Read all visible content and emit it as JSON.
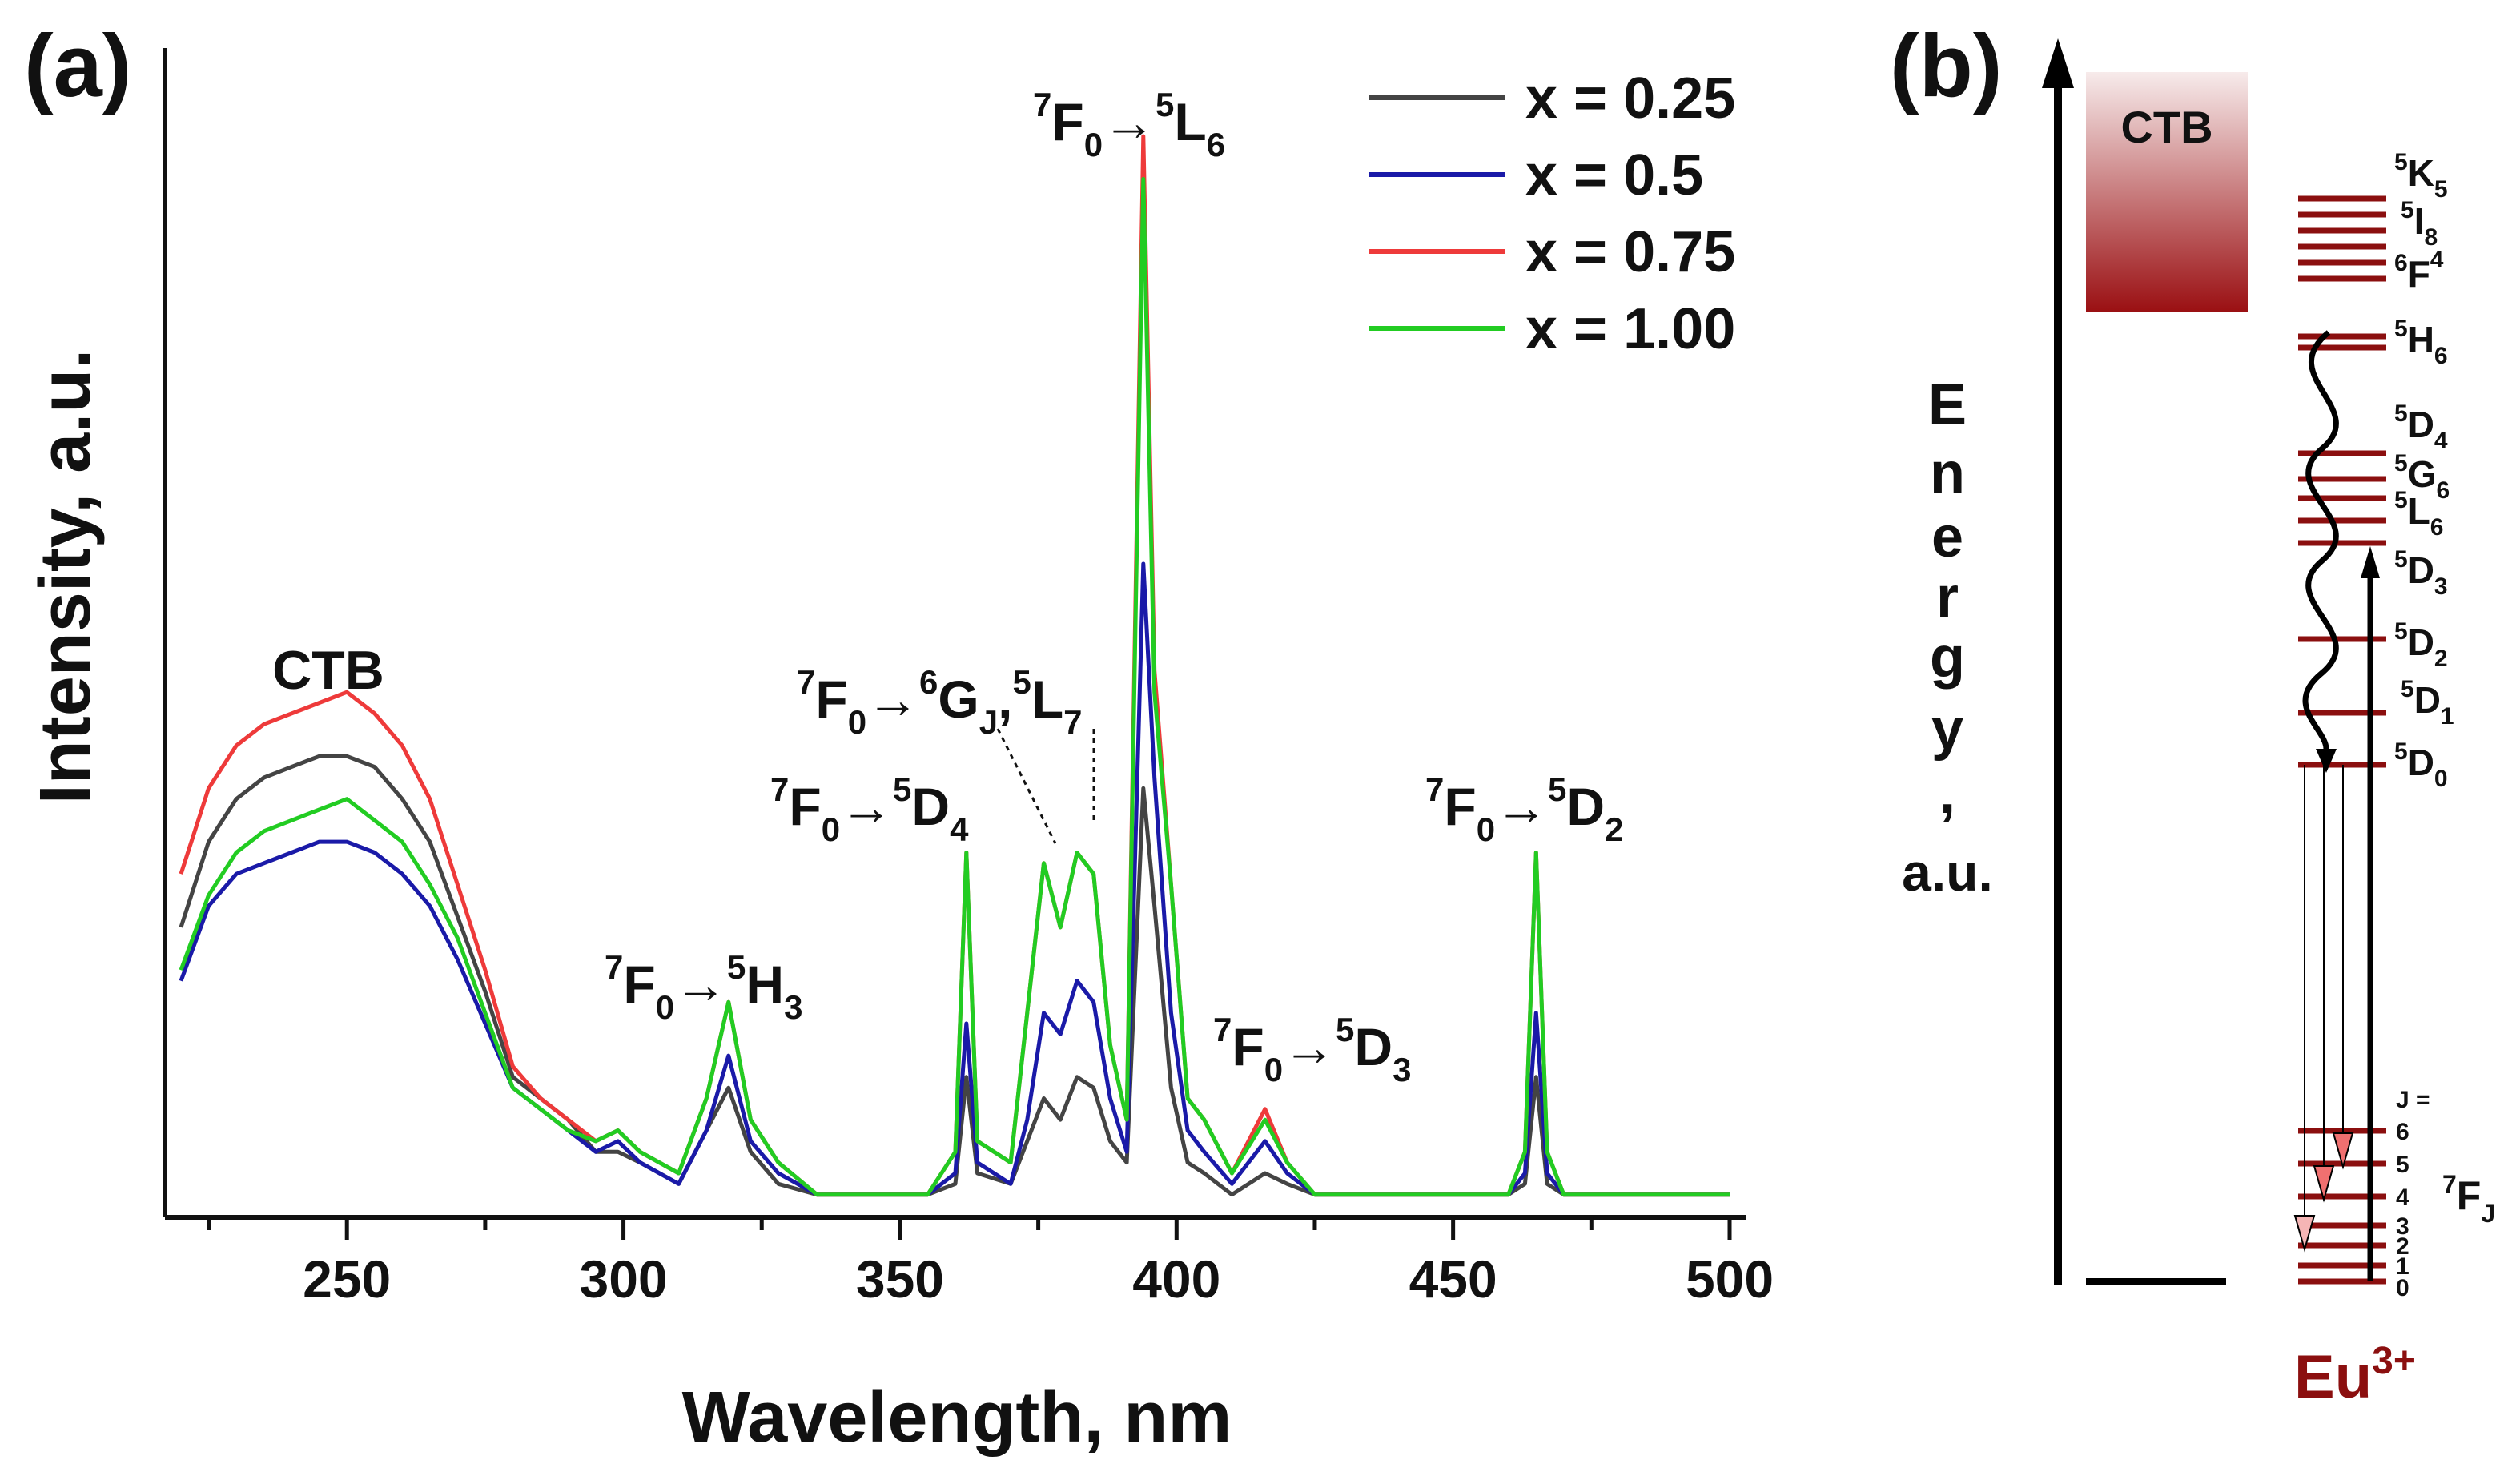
{
  "panel_a_label": "(a)",
  "panel_b_label": "(b)",
  "chart_data": [
    {
      "type": "line",
      "panel": "(a)",
      "xlabel": "Wavelength, nm",
      "ylabel": "Intensity, a.u.",
      "xlim": [
        220,
        500
      ],
      "ylim": [
        0,
        100
      ],
      "xticks": [
        250,
        300,
        350,
        400,
        450,
        500
      ],
      "xtick_labels": [
        "250",
        "300",
        "350",
        "400",
        "450",
        "500"
      ],
      "legend_position": "top-right",
      "series": [
        {
          "name": "x = 0.25",
          "color": "#444444",
          "x": [
            220,
            225,
            230,
            235,
            240,
            245,
            250,
            255,
            260,
            265,
            270,
            275,
            280,
            285,
            290,
            295,
            299,
            303,
            310,
            315,
            319,
            323,
            328,
            335,
            345,
            355,
            360,
            362,
            364,
            370,
            373,
            376,
            379,
            382,
            385,
            388,
            391,
            394,
            396,
            399,
            402,
            405,
            410,
            416,
            420,
            425,
            440,
            445,
            450,
            460,
            463,
            465,
            467,
            470,
            480,
            488,
            495,
            500
          ],
          "values": [
            26,
            34,
            38,
            40,
            41,
            42,
            42,
            41,
            38,
            34,
            27,
            20,
            12,
            10,
            8,
            5,
            5,
            4,
            2,
            7,
            11,
            5,
            2,
            1,
            1,
            1,
            2,
            12,
            3,
            2,
            6,
            10,
            8,
            12,
            11,
            6,
            4,
            39,
            28,
            11,
            4,
            3,
            1,
            3,
            2,
            1,
            1,
            1,
            1,
            1,
            2,
            12,
            2,
            1,
            1,
            1,
            1,
            1
          ]
        },
        {
          "name": "x = 0.5",
          "color": "#1a1aa8",
          "x": [
            220,
            225,
            230,
            235,
            240,
            245,
            250,
            255,
            260,
            265,
            270,
            275,
            280,
            285,
            290,
            295,
            299,
            303,
            310,
            315,
            319,
            323,
            328,
            335,
            345,
            355,
            360,
            362,
            364,
            370,
            373,
            376,
            379,
            382,
            385,
            388,
            391,
            394,
            396,
            399,
            402,
            405,
            410,
            416,
            420,
            425,
            440,
            445,
            450,
            460,
            463,
            465,
            467,
            470,
            480,
            488,
            495,
            500
          ],
          "values": [
            21,
            28,
            31,
            32,
            33,
            34,
            34,
            33,
            31,
            28,
            23,
            17,
            11,
            9,
            7,
            5,
            6,
            4,
            2,
            7,
            14,
            6,
            3,
            1,
            1,
            1,
            3,
            17,
            4,
            2,
            8,
            18,
            16,
            21,
            19,
            10,
            5,
            60,
            40,
            18,
            7,
            5,
            2,
            6,
            3,
            1,
            1,
            1,
            1,
            1,
            3,
            18,
            3,
            1,
            1,
            1,
            1,
            1
          ]
        },
        {
          "name": "x = 0.75",
          "color": "#ee3a3a",
          "x": [
            220,
            225,
            230,
            235,
            240,
            245,
            250,
            255,
            260,
            265,
            270,
            275,
            280,
            285,
            290,
            295,
            299,
            303,
            310,
            315,
            319,
            323,
            328,
            335,
            345,
            355,
            360,
            362,
            364,
            370,
            373,
            376,
            379,
            382,
            385,
            388,
            391,
            394,
            396,
            399,
            402,
            405,
            410,
            416,
            420,
            425,
            440,
            445,
            450,
            460,
            463,
            465,
            467,
            470,
            480,
            488,
            495,
            500
          ],
          "values": [
            31,
            39,
            43,
            45,
            46,
            47,
            48,
            46,
            43,
            38,
            30,
            22,
            13,
            10,
            8,
            6,
            7,
            5,
            3,
            10,
            19,
            8,
            4,
            1,
            1,
            1,
            5,
            33,
            6,
            4,
            18,
            32,
            26,
            33,
            31,
            15,
            8,
            100,
            50,
            30,
            10,
            8,
            3,
            9,
            4,
            1,
            1,
            1,
            1,
            1,
            5,
            33,
            5,
            1,
            1,
            1,
            1,
            1
          ]
        },
        {
          "name": "x = 1.00",
          "color": "#22cc22",
          "x": [
            220,
            225,
            230,
            235,
            240,
            245,
            250,
            255,
            260,
            265,
            270,
            275,
            280,
            285,
            290,
            295,
            299,
            303,
            310,
            315,
            319,
            323,
            328,
            335,
            345,
            355,
            360,
            362,
            364,
            370,
            373,
            376,
            379,
            382,
            385,
            388,
            391,
            394,
            396,
            399,
            402,
            405,
            410,
            416,
            420,
            425,
            440,
            445,
            450,
            460,
            463,
            465,
            467,
            470,
            480,
            488,
            495,
            500
          ],
          "values": [
            22,
            29,
            33,
            35,
            36,
            37,
            38,
            36,
            34,
            30,
            25,
            18,
            11,
            9,
            7,
            6,
            7,
            5,
            3,
            10,
            19,
            8,
            4,
            1,
            1,
            1,
            5,
            33,
            6,
            4,
            18,
            32,
            26,
            33,
            31,
            15,
            8,
            96,
            48,
            30,
            10,
            8,
            3,
            8,
            4,
            1,
            1,
            1,
            1,
            1,
            5,
            33,
            5,
            1,
            1,
            1,
            1,
            1
          ]
        }
      ],
      "annotations": [
        {
          "text": "CTB",
          "x": 247
        },
        {
          "main": "7F0→5H3",
          "parts": [
            "7",
            "F",
            "0",
            "→",
            "5",
            "H",
            "3"
          ],
          "x": 315
        },
        {
          "main": "7F0→5D4",
          "parts": [
            "7",
            "F",
            "0",
            "→",
            "5",
            "D",
            "4"
          ],
          "x": 355
        },
        {
          "main": "7F0→6GJ,5L7",
          "parts": [
            "7",
            "F",
            "0",
            "→",
            "6",
            "G",
            "J",
            ",",
            "5",
            "L",
            "7"
          ],
          "x": 375
        },
        {
          "main": "7F0→5L6",
          "parts": [
            "7",
            "F",
            "0",
            "→",
            "5",
            "L",
            "6"
          ],
          "x": 394
        },
        {
          "main": "7F0→5D3",
          "parts": [
            "7",
            "F",
            "0",
            "→",
            "5",
            "D",
            "3"
          ],
          "x": 416
        },
        {
          "main": "7F0→5D2",
          "parts": [
            "7",
            "F",
            "0",
            "→",
            "5",
            "D",
            "2"
          ],
          "x": 465
        }
      ]
    },
    {
      "type": "diagram",
      "panel": "(b)",
      "axis_label_letters": [
        "E",
        "n",
        "e",
        "r",
        "g",
        "y",
        ","
      ],
      "axis_unit": "a.u.",
      "ctb_label": "CTB",
      "ion_label": "Eu",
      "ion_charge": "3+",
      "upper_levels": [
        {
          "sup": "5",
          "name": "K",
          "sub": "5"
        },
        {
          "sup": "5",
          "name": "I",
          "sub": "8"
        },
        {
          "sup": "6",
          "name": "F",
          "sub": "4"
        },
        {
          "sup": "5",
          "name": "H",
          "sub": "6"
        },
        {
          "sup": "5",
          "name": "D",
          "sub": "4"
        },
        {
          "sup": "5",
          "name": "G",
          "sub": "6"
        },
        {
          "sup": "5",
          "name": "L",
          "sub": "6"
        },
        {
          "sup": "5",
          "name": "D",
          "sub": "3"
        },
        {
          "sup": "5",
          "name": "D",
          "sub": "2"
        },
        {
          "sup": "5",
          "name": "D",
          "sub": "1"
        },
        {
          "sup": "5",
          "name": "D",
          "sub": "0"
        }
      ],
      "ground_multiplet": {
        "sup": "7",
        "name": "F",
        "sub": "J"
      },
      "j_header": "J =",
      "j_values": [
        "6",
        "5",
        "4",
        "3",
        "2",
        "1",
        "0"
      ],
      "colors": {
        "level": "#8b0f0f",
        "ctb_top": "#f5e6e6",
        "ctb_bottom": "#9a0f12",
        "emission_arrow": "#f07070",
        "ion_label": "#8b0f0f"
      }
    }
  ]
}
